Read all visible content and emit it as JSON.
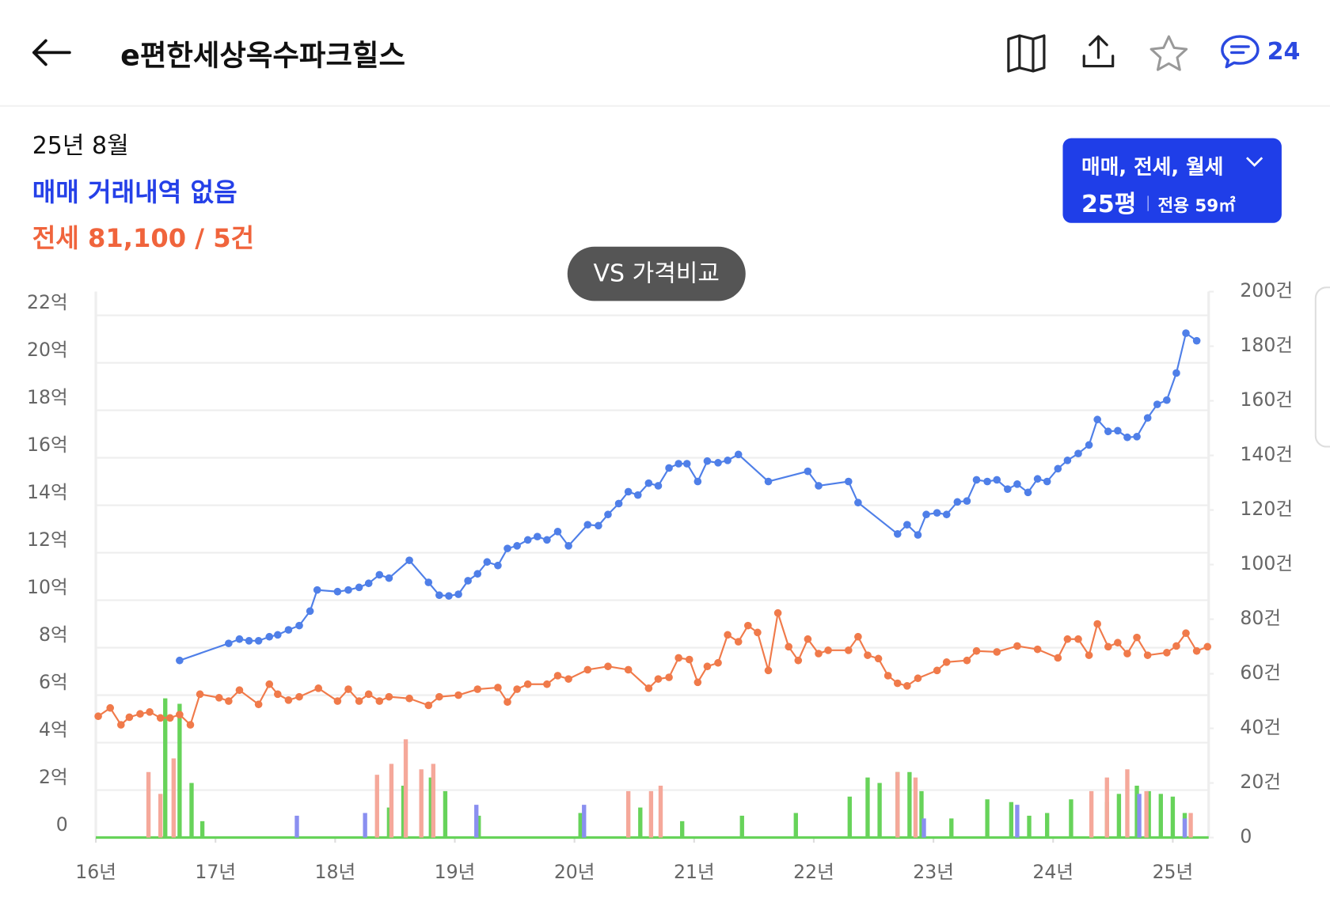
{
  "header": {
    "title": "e편한세상옥수파크힐스",
    "comment_count": 24
  },
  "summary": {
    "month": "25년 8월",
    "sale": "매매 거래내역 없음",
    "jeonse": "전세 81,100 / 5건"
  },
  "filter": {
    "trade_types": "매매, 전세, 월세",
    "pyeong": "25평",
    "area": "전용 59㎡"
  },
  "compare_button": "VS 가격비교",
  "chart_data": {
    "type": "line",
    "grid": true,
    "xlim": [
      16,
      25.3
    ],
    "xticks": [
      {
        "value": 16,
        "label": "16년"
      },
      {
        "value": 17,
        "label": "17년"
      },
      {
        "value": 18,
        "label": "18년"
      },
      {
        "value": 19,
        "label": "19년"
      },
      {
        "value": 20,
        "label": "20년"
      },
      {
        "value": 21,
        "label": "21년"
      },
      {
        "value": 22,
        "label": "22년"
      },
      {
        "value": 23,
        "label": "23년"
      },
      {
        "value": 24,
        "label": "24년"
      },
      {
        "value": 25,
        "label": "25년"
      }
    ],
    "ylim": [
      0,
      23
    ],
    "yticks": [
      0,
      {
        "value": 2,
        "label": "2억"
      },
      {
        "value": 4,
        "label": "4억"
      },
      {
        "value": 6,
        "label": "6억"
      },
      {
        "value": 8,
        "label": "8억"
      },
      {
        "value": 10,
        "label": "10억"
      },
      {
        "value": 12,
        "label": "12억"
      },
      {
        "value": 14,
        "label": "14억"
      },
      {
        "value": 16,
        "label": "16억"
      },
      {
        "value": 18,
        "label": "18억"
      },
      {
        "value": 20,
        "label": "20억"
      },
      {
        "value": 22,
        "label": "22억"
      }
    ],
    "y2lim": [
      0,
      200
    ],
    "y2ticks": [
      0,
      {
        "value": 20,
        "label": "20건"
      },
      {
        "value": 40,
        "label": "40건"
      },
      {
        "value": 60,
        "label": "60건"
      },
      {
        "value": 80,
        "label": "80건"
      },
      {
        "value": 100,
        "label": "100건"
      },
      {
        "value": 120,
        "label": "120건"
      },
      {
        "value": 140,
        "label": "140건"
      },
      {
        "value": 160,
        "label": "160건"
      },
      {
        "value": 180,
        "label": "180건"
      },
      {
        "value": 200,
        "label": "200건"
      }
    ],
    "series": [
      {
        "type": "bar",
        "axis": "y2",
        "color": "#67d35a",
        "x": [
          16.58,
          16.7,
          16.8,
          16.89,
          18.45,
          18.57,
          18.8,
          18.92,
          19.2,
          20.05,
          20.55,
          20.9,
          21.4,
          21.85,
          22.3,
          22.45,
          22.55,
          22.7,
          22.8,
          22.9,
          23.15,
          23.45,
          23.65,
          23.8,
          23.95,
          24.15,
          24.45,
          24.55,
          24.7,
          24.8,
          24.9,
          25.0,
          25.1
        ],
        "values": [
          51,
          49,
          20,
          6,
          11,
          19,
          22,
          17,
          8,
          9,
          11,
          6,
          8,
          9,
          15,
          22,
          20,
          24,
          24,
          17,
          7,
          14,
          13,
          8,
          9,
          14,
          13,
          16,
          19,
          17,
          16,
          15,
          9
        ]
      },
      {
        "type": "bar",
        "axis": "y2",
        "color": "#f5a89a",
        "x": [
          16.44,
          16.54,
          16.65,
          18.35,
          18.47,
          18.59,
          18.72,
          18.82,
          20.45,
          20.64,
          20.72,
          22.7,
          22.85,
          24.32,
          24.45,
          24.62,
          24.78,
          25.15
        ],
        "values": [
          24,
          16,
          29,
          23,
          27,
          36,
          25,
          27,
          17,
          17,
          19,
          24,
          22,
          17,
          22,
          25,
          17,
          9
        ]
      },
      {
        "type": "bar",
        "axis": "y2",
        "color": "#8a8ff0",
        "x": [
          17.68,
          18.25,
          19.18,
          20.08,
          22.92,
          23.7,
          24.72,
          25.1
        ],
        "values": [
          8,
          9,
          12,
          12,
          7,
          12,
          16,
          7
        ]
      },
      {
        "type": "line",
        "color": "#f07a4a",
        "x": [
          16.02,
          16.12,
          16.21,
          16.28,
          16.37,
          16.45,
          16.54,
          16.62,
          16.7,
          16.79,
          16.87,
          17.03,
          17.11,
          17.2,
          17.36,
          17.45,
          17.52,
          17.61,
          17.7,
          17.86,
          18.02,
          18.11,
          18.2,
          18.28,
          18.37,
          18.45,
          18.62,
          18.78,
          18.87,
          19.03,
          19.19,
          19.36,
          19.44,
          19.52,
          19.61,
          19.77,
          19.86,
          19.95,
          20.11,
          20.28,
          20.45,
          20.62,
          20.7,
          20.79,
          20.87,
          20.96,
          21.03,
          21.11,
          21.2,
          21.28,
          21.37,
          21.45,
          21.53,
          21.62,
          21.7,
          21.79,
          21.87,
          21.95,
          22.04,
          22.12,
          22.29,
          22.37,
          22.45,
          22.54,
          22.62,
          22.7,
          22.78,
          22.87,
          23.03,
          23.11,
          23.28,
          23.36,
          23.53,
          23.7,
          23.87,
          24.04,
          24.12,
          24.21,
          24.3,
          24.37,
          24.46,
          24.54,
          24.62,
          24.7,
          24.79,
          24.95,
          25.03,
          25.11,
          25.2,
          25.29
        ],
        "values": [
          5.11,
          5.46,
          4.75,
          5.07,
          5.21,
          5.29,
          5.04,
          5.04,
          5.18,
          4.75,
          6.04,
          5.89,
          5.75,
          6.21,
          5.61,
          6.46,
          6.04,
          5.79,
          5.93,
          6.29,
          5.75,
          6.25,
          5.75,
          6.04,
          5.75,
          5.93,
          5.86,
          5.57,
          5.93,
          6.0,
          6.25,
          6.32,
          5.71,
          6.25,
          6.46,
          6.46,
          6.82,
          6.68,
          7.07,
          7.21,
          7.07,
          6.29,
          6.68,
          6.75,
          7.57,
          7.5,
          6.54,
          7.21,
          7.36,
          8.54,
          8.25,
          8.93,
          8.64,
          7.04,
          9.46,
          8.04,
          7.46,
          8.36,
          7.75,
          7.89,
          7.89,
          8.46,
          7.68,
          7.54,
          6.82,
          6.5,
          6.39,
          6.71,
          7.04,
          7.39,
          7.46,
          7.86,
          7.82,
          8.07,
          7.93,
          7.57,
          8.36,
          8.36,
          7.68,
          9.0,
          8.04,
          8.21,
          7.75,
          8.43,
          7.68,
          7.79,
          8.07,
          8.61,
          7.86,
          8.04
        ]
      },
      {
        "type": "line",
        "color": "#4f7fe8",
        "x": [
          16.7,
          17.11,
          17.2,
          17.28,
          17.36,
          17.45,
          17.52,
          17.61,
          17.7,
          17.79,
          17.85,
          18.02,
          18.11,
          18.2,
          18.28,
          18.37,
          18.45,
          18.62,
          18.78,
          18.87,
          18.95,
          19.03,
          19.11,
          19.19,
          19.27,
          19.36,
          19.44,
          19.52,
          19.61,
          19.69,
          19.77,
          19.86,
          19.95,
          20.11,
          20.2,
          20.28,
          20.37,
          20.45,
          20.53,
          20.62,
          20.7,
          20.79,
          20.87,
          20.94,
          21.03,
          21.11,
          21.2,
          21.28,
          21.37,
          21.62,
          21.95,
          22.04,
          22.29,
          22.37,
          22.7,
          22.78,
          22.87,
          22.94,
          23.03,
          23.11,
          23.2,
          23.28,
          23.36,
          23.45,
          23.53,
          23.62,
          23.7,
          23.79,
          23.87,
          23.95,
          24.04,
          24.12,
          24.21,
          24.3,
          24.37,
          24.46,
          24.54,
          24.62,
          24.7,
          24.79,
          24.87,
          24.95,
          25.03,
          25.11,
          25.2
        ],
        "values": [
          7.46,
          8.18,
          8.36,
          8.29,
          8.29,
          8.46,
          8.54,
          8.75,
          8.93,
          9.54,
          10.43,
          10.36,
          10.43,
          10.54,
          10.71,
          11.07,
          10.93,
          11.68,
          10.75,
          10.21,
          10.18,
          10.25,
          10.82,
          11.11,
          11.61,
          11.46,
          12.18,
          12.29,
          12.54,
          12.68,
          12.54,
          12.89,
          12.29,
          13.18,
          13.14,
          13.61,
          14.07,
          14.57,
          14.43,
          14.93,
          14.82,
          15.57,
          15.75,
          15.75,
          15.0,
          15.86,
          15.79,
          15.89,
          16.14,
          15.0,
          15.43,
          14.82,
          15.0,
          14.11,
          12.79,
          13.18,
          12.75,
          13.61,
          13.68,
          13.61,
          14.14,
          14.18,
          15.07,
          15.0,
          15.07,
          14.68,
          14.89,
          14.54,
          15.11,
          15.0,
          15.54,
          15.89,
          16.18,
          16.54,
          17.61,
          17.11,
          17.14,
          16.86,
          16.89,
          17.68,
          18.25,
          18.43,
          19.57,
          21.25,
          20.93
        ]
      }
    ]
  }
}
